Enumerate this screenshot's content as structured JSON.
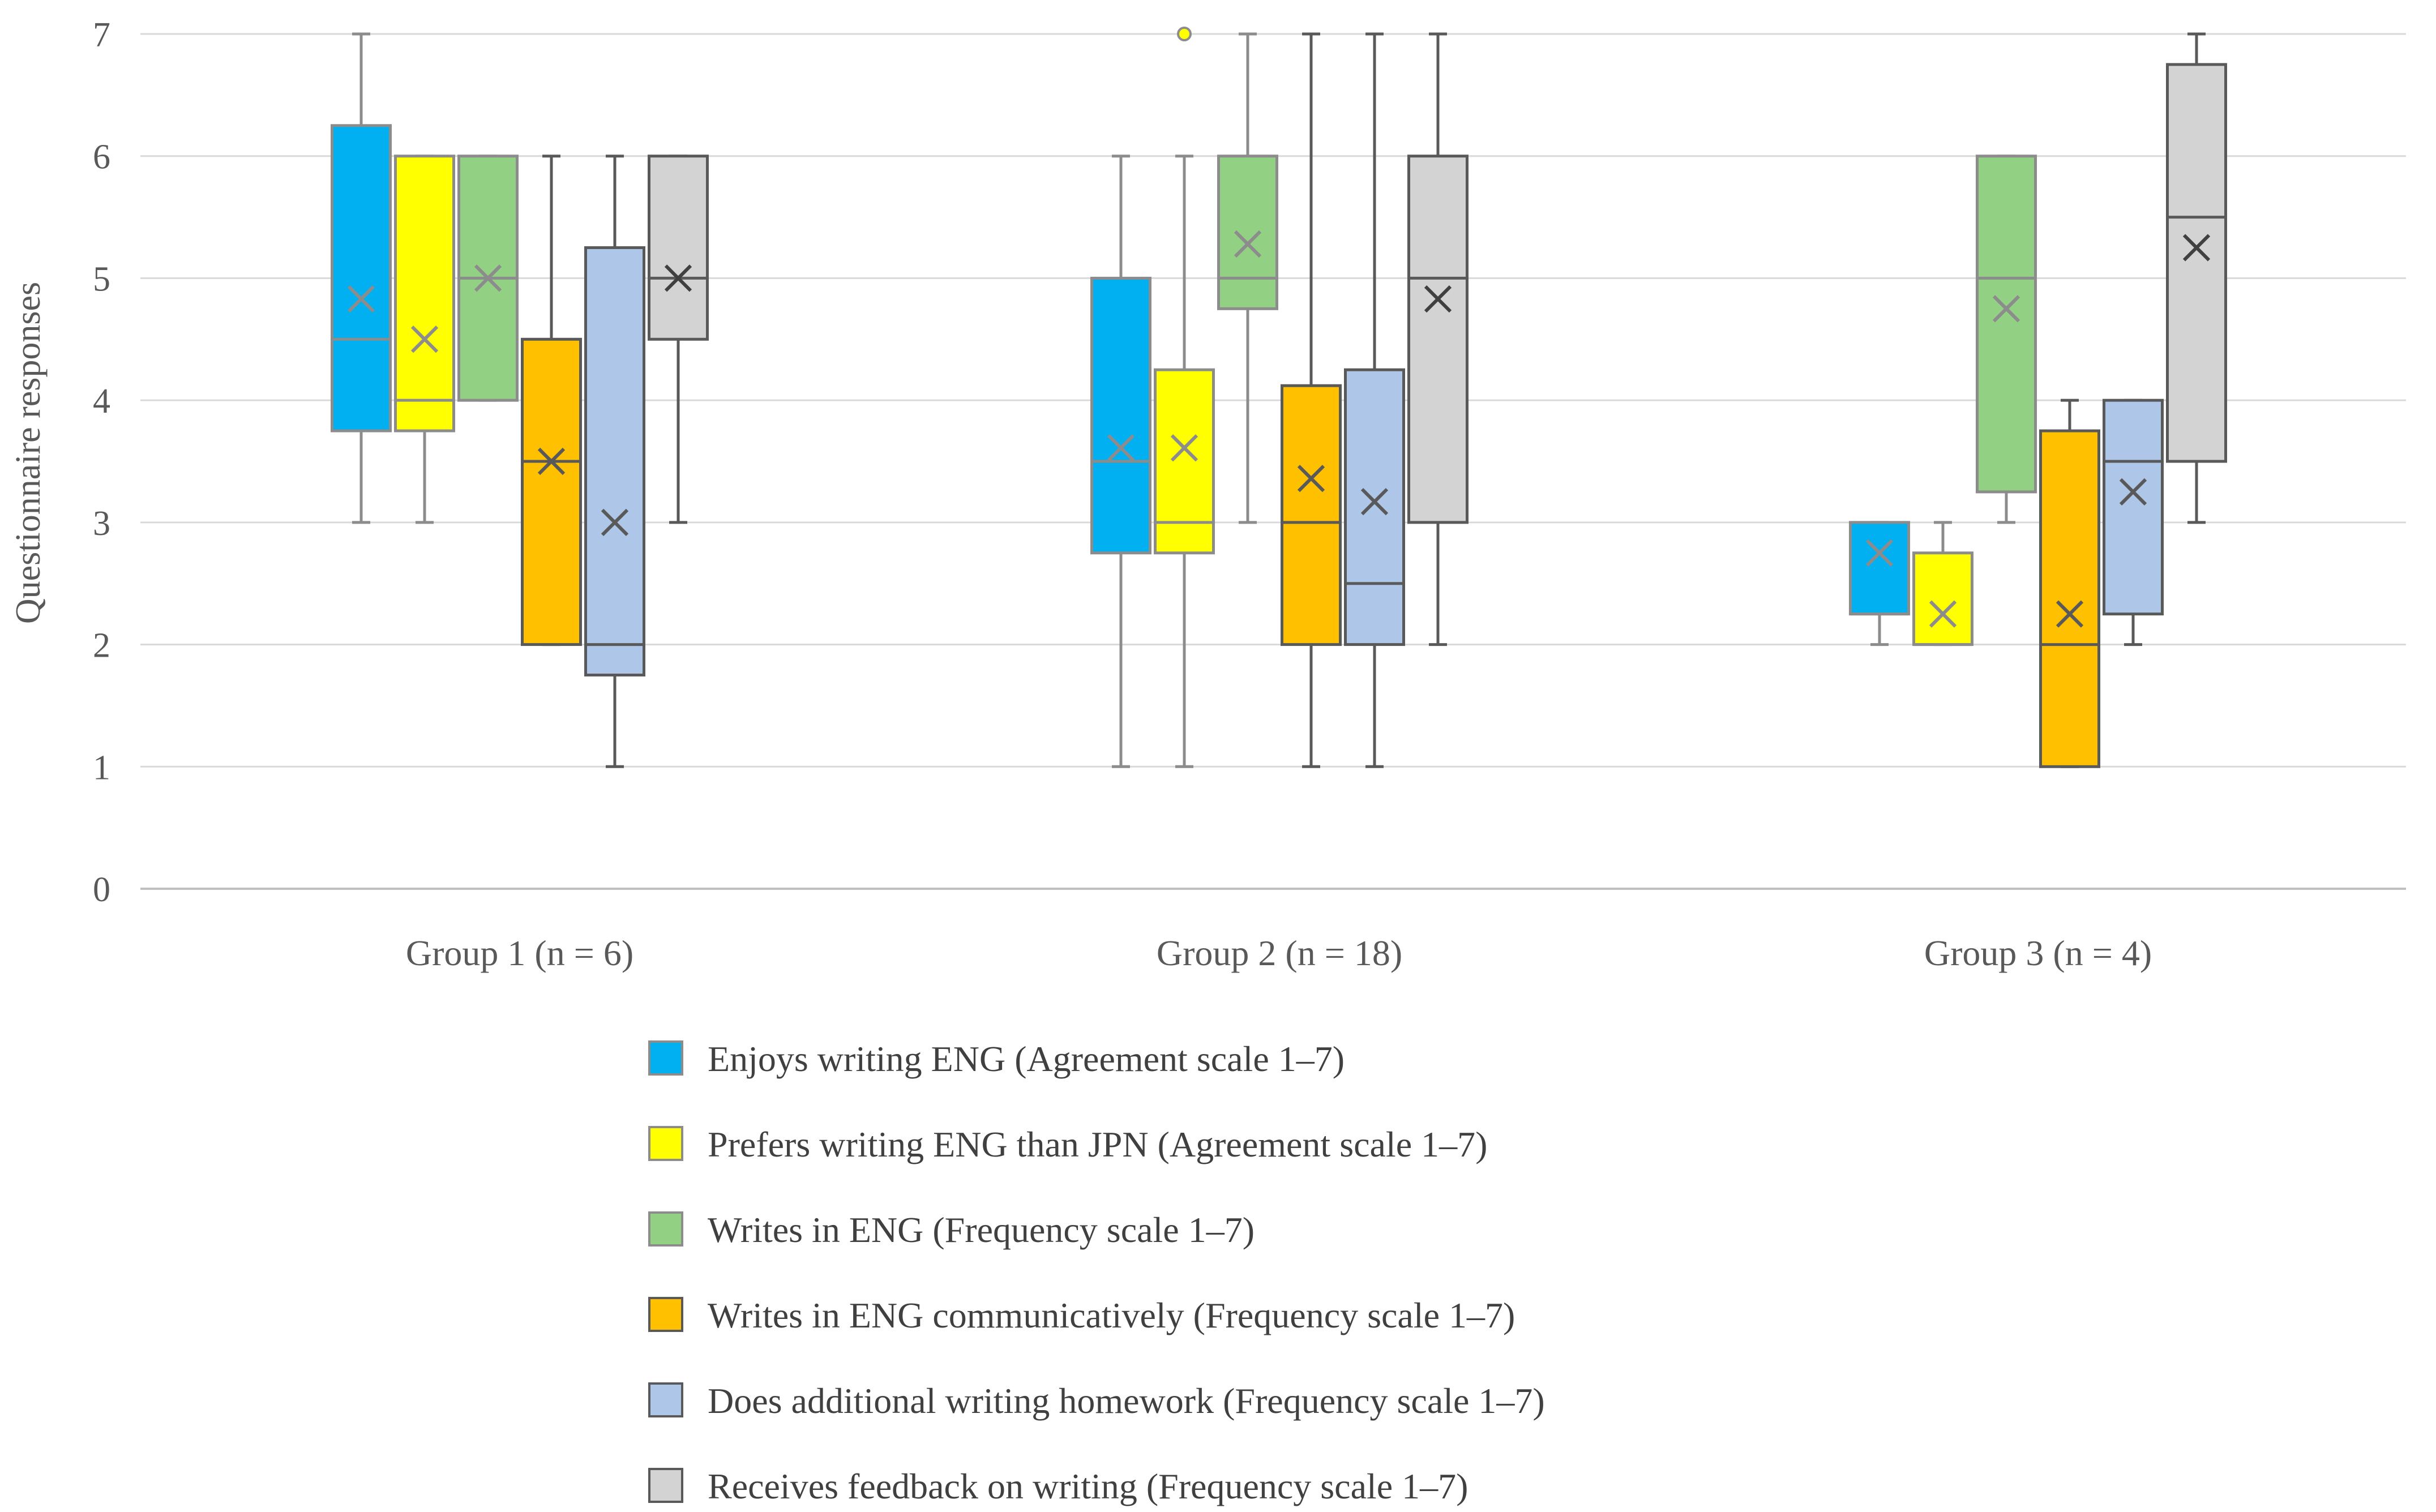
{
  "chart_data": {
    "type": "boxplot",
    "title": "",
    "xlabel": "",
    "ylabel": "Questionnaire responses",
    "ylim": [
      0,
      7
    ],
    "yticks": [
      "0",
      "1",
      "2",
      "3",
      "4",
      "5",
      "6",
      "7"
    ],
    "grid": true,
    "legend_position": "bottom",
    "categories": [
      "Group 1 (n = 6)",
      "Group 2 (n = 18)",
      "Group 3 (n = 4)"
    ],
    "series": [
      {
        "name": "Enjoys writing ENG  (Agreement scale 1–7)",
        "fill": "#00B0F0",
        "stroke": "#8C8C8C",
        "mean_color": "#8C8C8C",
        "boxes": [
          {
            "min": 3,
            "q1": 3.75,
            "median": 4.5,
            "q3": 6.25,
            "max": 7,
            "mean": 4.83,
            "outliers": []
          },
          {
            "min": 1,
            "q1": 2.75,
            "median": 3.5,
            "q3": 5,
            "max": 6,
            "mean": 3.61,
            "outliers": []
          },
          {
            "min": 2,
            "q1": 2.25,
            "median": 2.25,
            "q3": 3,
            "max": 3,
            "mean": 2.75,
            "outliers": []
          }
        ]
      },
      {
        "name": "Prefers writing ENG than JPN (Agreement scale 1–7)",
        "fill": "#FFFF00",
        "stroke": "#8C8C8C",
        "mean_color": "#8C8C8C",
        "boxes": [
          {
            "min": 3,
            "q1": 3.75,
            "median": 4,
            "q3": 6,
            "max": 6,
            "mean": 4.5,
            "outliers": []
          },
          {
            "min": 1,
            "q1": 2.75,
            "median": 3,
            "q3": 4.25,
            "max": 6,
            "mean": 3.61,
            "outliers": [
              7
            ]
          },
          {
            "min": 2,
            "q1": 2,
            "median": 2,
            "q3": 2.75,
            "max": 3,
            "mean": 2.25,
            "outliers": []
          }
        ]
      },
      {
        "name": "Writes in ENG (Frequency scale 1–7)",
        "fill": "#92D084",
        "stroke": "#8C8C8C",
        "mean_color": "#8C8C8C",
        "boxes": [
          {
            "min": 4,
            "q1": 4,
            "median": 5,
            "q3": 6,
            "max": 6,
            "mean": 5,
            "outliers": []
          },
          {
            "min": 3,
            "q1": 4.75,
            "median": 5,
            "q3": 6,
            "max": 7,
            "mean": 5.28,
            "outliers": []
          },
          {
            "min": 3,
            "q1": 3.25,
            "median": 5,
            "q3": 6,
            "max": 6,
            "mean": 4.75,
            "outliers": []
          }
        ]
      },
      {
        "name": "Writes in ENG communicatively (Frequency scale 1–7)",
        "fill": "#FFC000",
        "stroke": "#595959",
        "mean_color": "#595959",
        "boxes": [
          {
            "min": 2,
            "q1": 2,
            "median": 3.5,
            "q3": 4.5,
            "max": 6,
            "mean": 3.5,
            "outliers": []
          },
          {
            "min": 1,
            "q1": 2,
            "median": 3,
            "q3": 4.12,
            "max": 7,
            "mean": 3.36,
            "outliers": []
          },
          {
            "min": 1,
            "q1": 1,
            "median": 2,
            "q3": 3.75,
            "max": 4,
            "mean": 2.25,
            "outliers": []
          }
        ]
      },
      {
        "name": "Does additional writing homework (Frequency scale 1–7)",
        "fill": "#AEC6E8",
        "stroke": "#595959",
        "mean_color": "#595959",
        "boxes": [
          {
            "min": 1,
            "q1": 1.75,
            "median": 2,
            "q3": 5.25,
            "max": 6,
            "mean": 3,
            "outliers": []
          },
          {
            "min": 1,
            "q1": 2,
            "median": 2.5,
            "q3": 4.25,
            "max": 7,
            "mean": 3.17,
            "outliers": []
          },
          {
            "min": 2,
            "q1": 2.25,
            "median": 3.5,
            "q3": 4,
            "max": 4,
            "mean": 3.25,
            "outliers": []
          }
        ]
      },
      {
        "name": "Receives feedback on writing (Frequency scale 1–7)",
        "fill": "#D3D3D3",
        "stroke": "#595959",
        "mean_color": "#404040",
        "boxes": [
          {
            "min": 3,
            "q1": 4.5,
            "median": 5,
            "q3": 6,
            "max": 6,
            "mean": 5,
            "outliers": []
          },
          {
            "min": 2,
            "q1": 3,
            "median": 5,
            "q3": 6,
            "max": 7,
            "mean": 4.83,
            "outliers": []
          },
          {
            "min": 3,
            "q1": 3.5,
            "median": 5.5,
            "q3": 6.75,
            "max": 7,
            "mean": 5.25,
            "outliers": []
          }
        ]
      }
    ]
  }
}
